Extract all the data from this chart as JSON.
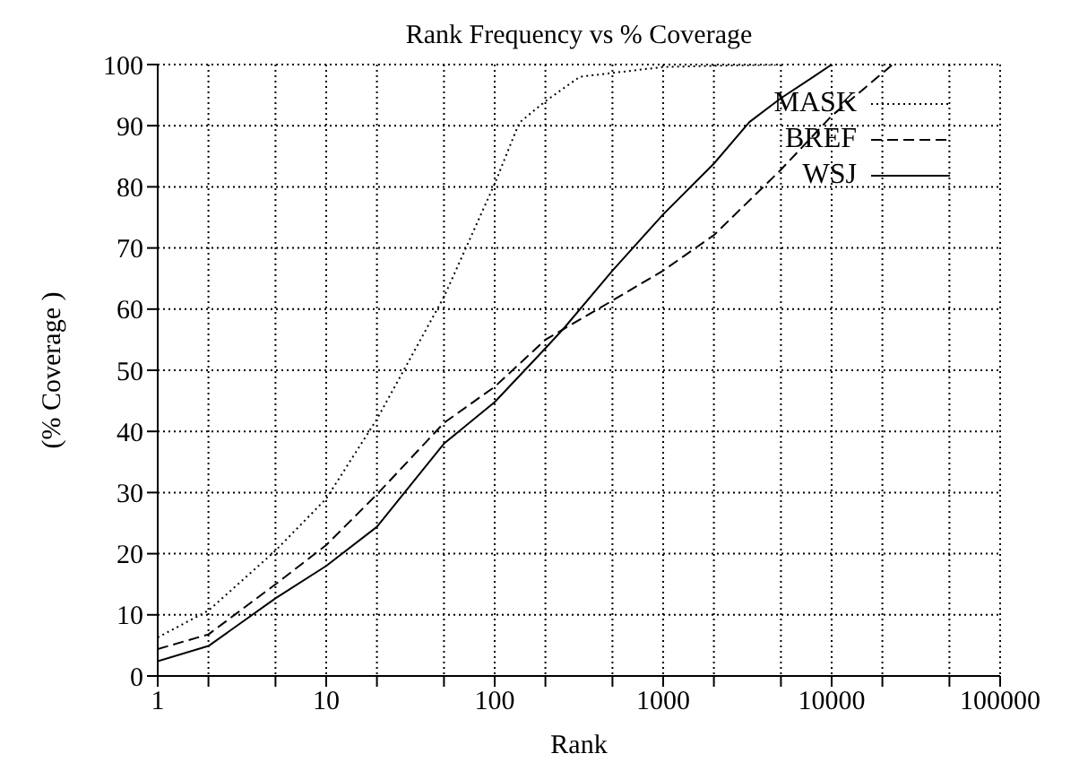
{
  "chart_data": {
    "type": "line",
    "title": "Rank Frequency vs % Coverage",
    "xlabel": "Rank",
    "ylabel": "(% Coverage )",
    "log": "x",
    "grid": true,
    "legend": "top right",
    "marker": "none",
    "xlim": [
      1,
      100000
    ],
    "xticks": [
      1,
      {
        "value": 2,
        "label": null
      },
      {
        "value": 5,
        "label": null
      },
      10,
      {
        "value": 20,
        "label": null
      },
      {
        "value": 50,
        "label": null
      },
      100,
      {
        "value": 200,
        "label": null
      },
      {
        "value": 500,
        "label": null
      },
      1000,
      {
        "value": 2000,
        "label": null
      },
      {
        "value": 5000,
        "label": null
      },
      10000,
      {
        "value": 20000,
        "label": null
      },
      {
        "value": 50000,
        "label": null
      },
      100000
    ],
    "ylim": [
      0,
      100
    ],
    "yticks": [
      0,
      10,
      20,
      30,
      40,
      50,
      60,
      70,
      80,
      90,
      100
    ],
    "series": [
      {
        "name": "MASK",
        "color": "#000000",
        "line_style": "dotted",
        "x": [
          1,
          2,
          5,
          10,
          20,
          50,
          100,
          140,
          200,
          320,
          1000,
          2000,
          5000
        ],
        "values": [
          6.3,
          10.7,
          20.5,
          29,
          42,
          62,
          80.5,
          90.5,
          94,
          98,
          99.6,
          99.8,
          100
        ]
      },
      {
        "name": "BREF",
        "color": "#000000",
        "line_style": "dashed",
        "x": [
          1,
          2,
          5,
          10,
          20,
          50,
          100,
          200,
          500,
          1000,
          2000,
          5000,
          10000,
          23000
        ],
        "values": [
          4.4,
          6.8,
          15,
          21.4,
          29.7,
          41.4,
          47.3,
          55,
          61.4,
          66.3,
          72.1,
          82.8,
          91.6,
          100
        ]
      },
      {
        "name": "WSJ",
        "color": "#000000",
        "line_style": "solid",
        "x": [
          1,
          2,
          5,
          10,
          20,
          50,
          100,
          200,
          260,
          500,
          1000,
          2000,
          3250,
          5000,
          7800,
          10000
        ],
        "values": [
          2.4,
          4.9,
          12.7,
          18,
          24.4,
          38,
          44.8,
          53.6,
          57,
          66.3,
          75.5,
          83.8,
          90.6,
          94.5,
          98,
          100
        ]
      }
    ]
  }
}
